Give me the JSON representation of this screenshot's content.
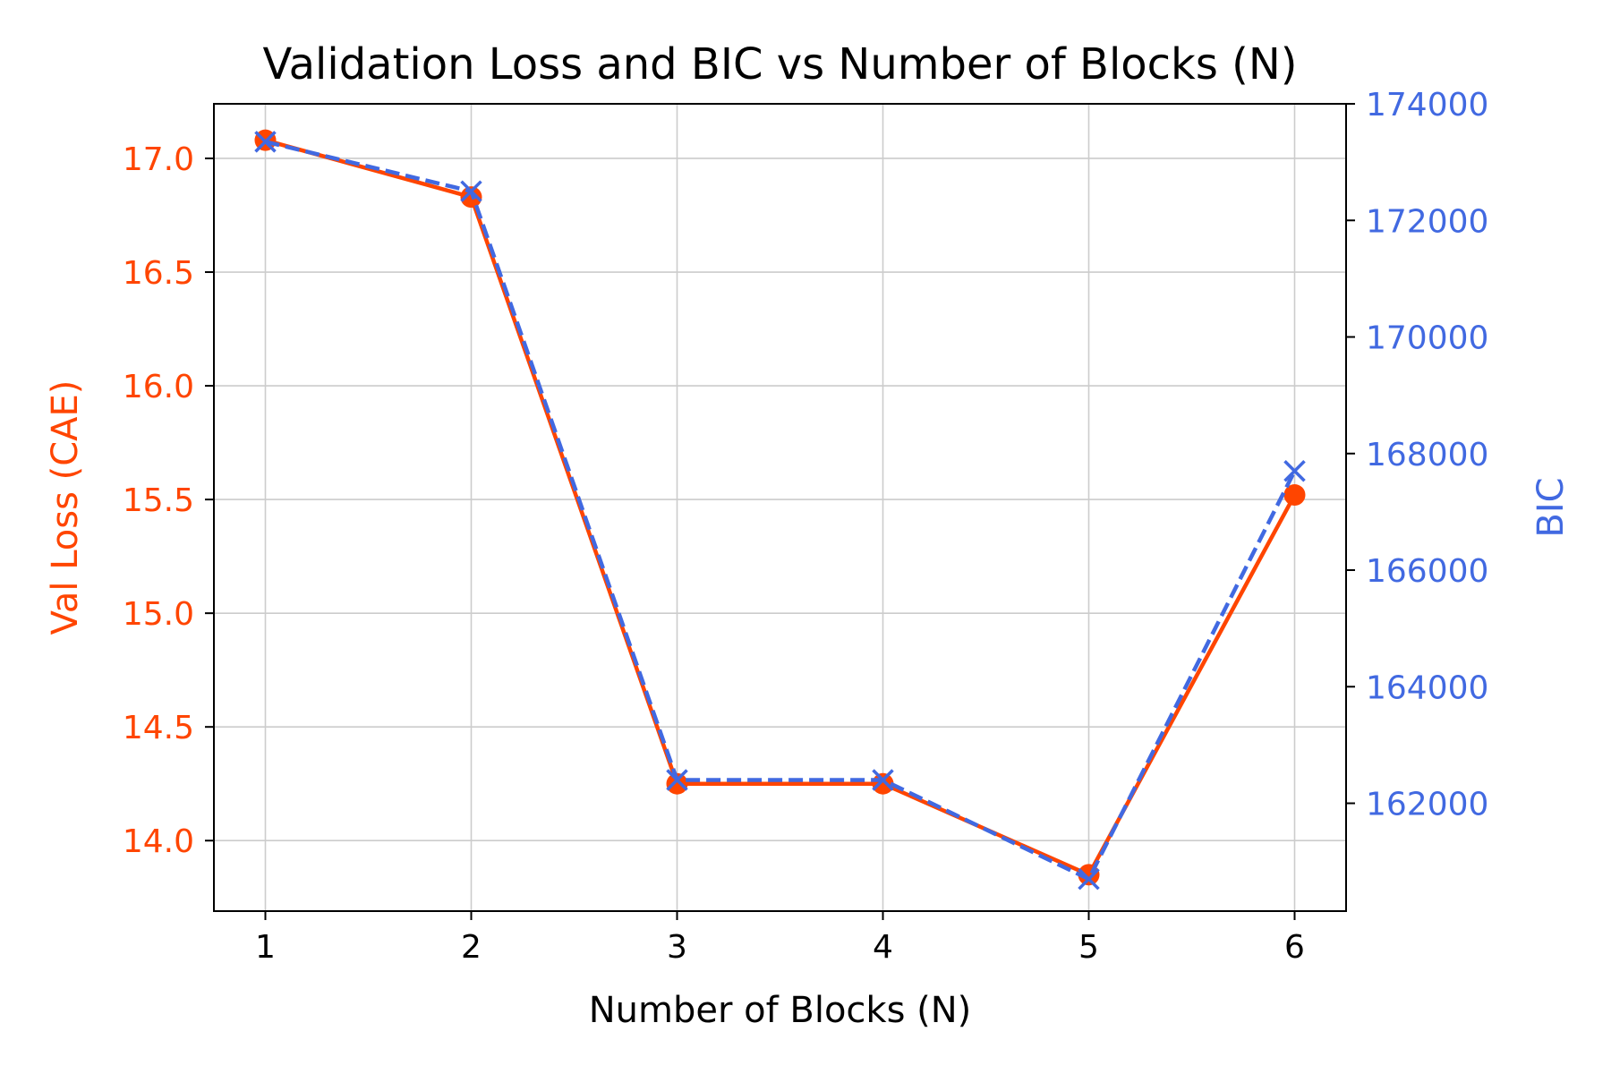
{
  "chart_data": {
    "type": "line",
    "title": "Validation Loss and BIC vs Number of Blocks (N)",
    "xlabel": "Number of Blocks (N)",
    "ylabel_left": "Val Loss (CAE)",
    "ylabel_right": "BIC",
    "x": [
      1,
      2,
      3,
      4,
      5,
      6
    ],
    "xlim": [
      0.75,
      6.25
    ],
    "ylim_left": [
      13.69,
      17.24
    ],
    "ylim_right": [
      160150,
      174000
    ],
    "xticks": [
      "1",
      "2",
      "3",
      "4",
      "5",
      "6"
    ],
    "yticks_left": [
      "14.0",
      "14.5",
      "15.0",
      "15.5",
      "16.0",
      "16.5",
      "17.0"
    ],
    "yticks_right": [
      "162000",
      "164000",
      "166000",
      "168000",
      "170000",
      "172000",
      "174000"
    ],
    "grid": true,
    "series": [
      {
        "axis": "left",
        "values": [
          17.08,
          16.83,
          14.25,
          14.25,
          13.85,
          15.52
        ],
        "color": "#FF4500",
        "marker": "circle",
        "line_style": "solid"
      },
      {
        "axis": "right",
        "values": [
          173350,
          172500,
          162400,
          162400,
          160700,
          167700
        ],
        "color": "#4169E1",
        "marker": "x",
        "line_style": "dashed"
      }
    ]
  }
}
